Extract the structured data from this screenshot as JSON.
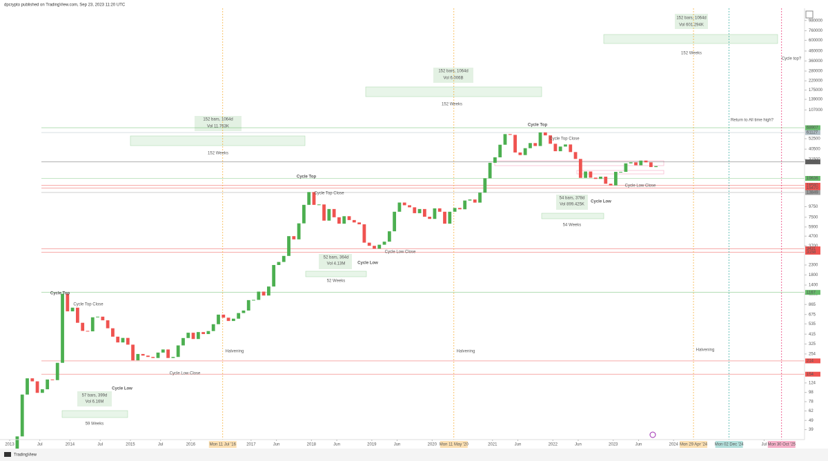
{
  "header": "dpcrypto published on TradingView.com, Sep 23, 2023 11:20 UTC",
  "footer": "TradingView",
  "chart_data": {
    "type": "candlestick",
    "log_scale": true,
    "grid": false,
    "up_color": "#4caf50",
    "down_color": "#ef5350",
    "xlim": [
      2012.84,
      2026.17
    ],
    "xticks": [
      2013,
      {
        "value": 2013.5,
        "label": "Jul"
      },
      2014,
      {
        "value": 2014.5,
        "label": "Jul"
      },
      2015,
      {
        "value": 2015.5,
        "label": "Jul"
      },
      2016,
      2017,
      {
        "value": 2017.42,
        "label": "Jun"
      },
      2018,
      {
        "value": 2018.42,
        "label": "Jun"
      },
      2019,
      {
        "value": 2019.42,
        "label": "Jun"
      },
      2020,
      2021,
      {
        "value": 2021.42,
        "label": "Jun"
      },
      2022,
      {
        "value": 2022.42,
        "label": "Jun"
      },
      2023,
      {
        "value": 2023.42,
        "label": "Jun"
      },
      2024,
      {
        "value": 2025.5,
        "label": "Jul"
      }
    ],
    "ylim": [
      31,
      1260000
    ],
    "yticks": [
      980000,
      760000,
      600000,
      460000,
      360000,
      280000,
      220000,
      175000,
      139000,
      107000,
      52500,
      40500,
      31500,
      9750,
      7500,
      5900,
      4700,
      3700,
      2300,
      1800,
      1400,
      1121,
      865,
      675,
      535,
      415,
      325,
      254,
      124,
      98,
      78,
      62,
      49,
      39
    ],
    "x": [
      "2013-01",
      "2013-02",
      "2013-03",
      "2013-04",
      "2013-05",
      "2013-06",
      "2013-07",
      "2013-08",
      "2013-09",
      "2013-10",
      "2013-11",
      "2013-12",
      "2014-01",
      "2014-02",
      "2014-03",
      "2014-04",
      "2014-05",
      "2014-06",
      "2014-07",
      "2014-08",
      "2014-09",
      "2014-10",
      "2014-11",
      "2014-12",
      "2015-01",
      "2015-02",
      "2015-03",
      "2015-04",
      "2015-05",
      "2015-06",
      "2015-07",
      "2015-08",
      "2015-09",
      "2015-10",
      "2015-11",
      "2015-12",
      "2016-01",
      "2016-02",
      "2016-03",
      "2016-04",
      "2016-05",
      "2016-06",
      "2016-07",
      "2016-08",
      "2016-09",
      "2016-10",
      "2016-11",
      "2016-12",
      "2017-01",
      "2017-02",
      "2017-03",
      "2017-04",
      "2017-05",
      "2017-06",
      "2017-07",
      "2017-08",
      "2017-09",
      "2017-10",
      "2017-11",
      "2017-12",
      "2018-01",
      "2018-02",
      "2018-03",
      "2018-04",
      "2018-05",
      "2018-06",
      "2018-07",
      "2018-08",
      "2018-09",
      "2018-10",
      "2018-11",
      "2018-12",
      "2019-01",
      "2019-02",
      "2019-03",
      "2019-04",
      "2019-05",
      "2019-06",
      "2019-07",
      "2019-08",
      "2019-09",
      "2019-10",
      "2019-11",
      "2019-12",
      "2020-01",
      "2020-02",
      "2020-03",
      "2020-04",
      "2020-05",
      "2020-06",
      "2020-07",
      "2020-08",
      "2020-09",
      "2020-10",
      "2020-11",
      "2020-12",
      "2021-01",
      "2021-02",
      "2021-03",
      "2021-04",
      "2021-05",
      "2021-06",
      "2021-07",
      "2021-08",
      "2021-09",
      "2021-10",
      "2021-11",
      "2021-12",
      "2022-01",
      "2022-02",
      "2022-03",
      "2022-04",
      "2022-05",
      "2022-06",
      "2022-07",
      "2022-08",
      "2022-09",
      "2022-10",
      "2022-11",
      "2022-12",
      "2023-01",
      "2023-02",
      "2023-03",
      "2023-04",
      "2023-05",
      "2023-06",
      "2023-07",
      "2023-08",
      "2023-09"
    ],
    "values": [
      20,
      33,
      93,
      139,
      129,
      97,
      106,
      135,
      133,
      204,
      1130,
      730,
      800,
      550,
      450,
      445,
      630,
      640,
      585,
      480,
      390,
      338,
      378,
      320,
      217,
      254,
      244,
      236,
      230,
      263,
      284,
      230,
      236,
      314,
      377,
      430,
      368,
      437,
      416,
      448,
      531,
      673,
      624,
      575,
      609,
      700,
      745,
      964,
      970,
      1190,
      1080,
      1350,
      2300,
      2480,
      2880,
      4700,
      4340,
      6450,
      10200,
      14000,
      10200,
      10300,
      6900,
      9200,
      7500,
      6400,
      7700,
      7000,
      6600,
      6300,
      4000,
      3700,
      3450,
      3800,
      4100,
      5300,
      8600,
      10800,
      10100,
      9600,
      8300,
      9200,
      7600,
      7200,
      9350,
      8600,
      6400,
      8600,
      9450,
      9140,
      11350,
      11650,
      10780,
      13800,
      19700,
      28900,
      33100,
      45200,
      58800,
      57700,
      37300,
      35000,
      41500,
      47100,
      43800,
      61300,
      57000,
      46300,
      38500,
      43200,
      45500,
      37700,
      31800,
      19900,
      23300,
      20000,
      19400,
      20500,
      17200,
      16500,
      23100,
      23100,
      28500,
      29200,
      27200,
      30500,
      29200,
      26000,
      26600
    ],
    "levels": [
      {
        "value": 68907,
        "color": "#66bb6a"
      },
      {
        "value": 61127,
        "color": "#b0bec5"
      },
      {
        "value": 29568,
        "color": "#616161"
      },
      {
        "value": 19636,
        "color": "#66bb6a"
      },
      {
        "value": 16580,
        "color": "#ef5350"
      },
      {
        "value": 15470,
        "color": "#ef5350"
      },
      {
        "value": 13849,
        "color": "#9e9e9e"
      },
      {
        "value": 3431,
        "color": "#ef5350"
      },
      {
        "value": 3158,
        "color": "#ef5350"
      },
      {
        "value": 1167,
        "color": "#66bb6a"
      },
      {
        "value": 214,
        "color": "#ef5350"
      },
      {
        "value": 154,
        "color": "#ef5350"
      }
    ],
    "markers": [
      {
        "label": "Mon 11 Jul '16",
        "x": 2016.53,
        "color": "#f5a623"
      },
      {
        "label": "Mon 11 May '20",
        "x": 2020.36,
        "color": "#f5a623"
      },
      {
        "label": "Mon 29 Apr '24",
        "x": 2024.33,
        "color": "#f5a623"
      },
      {
        "label": "Mon 02 Dec '24",
        "x": 2024.92,
        "color": "#26a69a"
      },
      {
        "label": "Mon 30 Oct '25",
        "x": 2025.79,
        "color": "#e91e63"
      }
    ],
    "annotations": [
      {
        "text": "Cycle Top",
        "color": "#4caf50"
      },
      {
        "text": "Cycle Top Close",
        "color": "#4caf50"
      },
      {
        "text": "Cycle Low",
        "color": "#ef5350"
      },
      {
        "text": "Cycle Low Close",
        "color": "#ef5350"
      },
      {
        "text": "57 bars, 399d",
        "color": "#9ccc9c"
      },
      {
        "text": "Vol 6.16M",
        "color": "#9ccc9c"
      },
      {
        "text": "59 Weeks",
        "color": "#ef5350"
      },
      {
        "text": "Cycle Top",
        "color": "#4caf50"
      },
      {
        "text": "Cycle Top Close",
        "color": "#4caf50"
      },
      {
        "text": "Cycle Low",
        "color": "#ef5350"
      },
      {
        "text": "Cycle Low Close",
        "color": "#ef5350"
      },
      {
        "text": "52 bars, 364d",
        "color": "#9ccc9c"
      },
      {
        "text": "Vol 4.13M",
        "color": "#9ccc9c"
      },
      {
        "text": "52 Weeks",
        "color": "#ef5350"
      },
      {
        "text": "152 bars, 1064d",
        "color": "#9ccc9c"
      },
      {
        "text": "Vol 11.763K",
        "color": "#9ccc9c"
      },
      {
        "text": "152 Weeks",
        "color": "#4caf50"
      },
      {
        "text": "152 bars, 1064d",
        "color": "#9ccc9c"
      },
      {
        "text": "Vol 6.006B",
        "color": "#9ccc9c"
      },
      {
        "text": "152 Weeks",
        "color": "#4caf50"
      },
      {
        "text": "Cycle Top",
        "color": "#4caf50"
      },
      {
        "text": "Cycle Top Close",
        "color": "#4caf50"
      },
      {
        "text": "Cycle Low",
        "color": "#ef5350"
      },
      {
        "text": "Cycle Low Close",
        "color": "#ef5350"
      },
      {
        "text": "54 bars, 378d",
        "color": "#9ccc9c"
      },
      {
        "text": "Vol 899.425K",
        "color": "#9ccc9c"
      },
      {
        "text": "54 Weeks",
        "color": "#ef5350"
      },
      {
        "text": "152 bars, 1064d",
        "color": "#9ccc9c"
      },
      {
        "text": "Vol 601.294K",
        "color": "#9ccc9c"
      },
      {
        "text": "152 Weeks",
        "color": "#4caf50"
      },
      {
        "text": "Halvening",
        "color": "#f5a623"
      },
      {
        "text": "Halvening",
        "color": "#f5a623"
      },
      {
        "text": "Halvening",
        "color": "#f5a623"
      },
      {
        "text": "Return to All time high?",
        "color": "#26a69a"
      },
      {
        "text": "Cycle top?",
        "color": "#e91e63"
      }
    ]
  }
}
